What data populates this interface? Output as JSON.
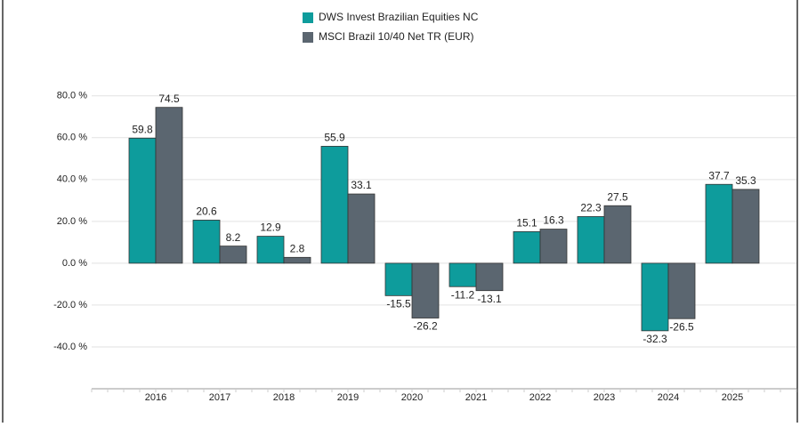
{
  "chart_data": {
    "type": "bar",
    "categories": [
      "2016",
      "2017",
      "2018",
      "2019",
      "2020",
      "2021",
      "2022",
      "2023",
      "2024",
      "2025"
    ],
    "series": [
      {
        "name": "DWS Invest Brazilian Equities NC",
        "color": "#0e9c9c",
        "values": [
          59.8,
          20.6,
          12.9,
          55.9,
          -15.5,
          -11.2,
          15.1,
          22.3,
          -32.3,
          37.7
        ]
      },
      {
        "name": "MSCI Brazil 10/40 Net TR (EUR)",
        "color": "#5b6670",
        "values": [
          74.5,
          8.2,
          2.8,
          33.1,
          -26.2,
          -13.1,
          16.3,
          27.5,
          -26.5,
          35.3
        ]
      }
    ],
    "ylim": [
      -60,
      85
    ],
    "yticks": [
      {
        "value": -40,
        "label": "-40.0 %"
      },
      {
        "value": -20,
        "label": "-20.0 %"
      },
      {
        "value": 0,
        "label": "0.0 %"
      },
      {
        "value": 20,
        "label": "20.0 %"
      },
      {
        "value": 40,
        "label": "40.0 %"
      },
      {
        "value": 60,
        "label": "60.0 %"
      },
      {
        "value": 80,
        "label": "80.0 %"
      }
    ],
    "grid": true,
    "legend": "top"
  }
}
